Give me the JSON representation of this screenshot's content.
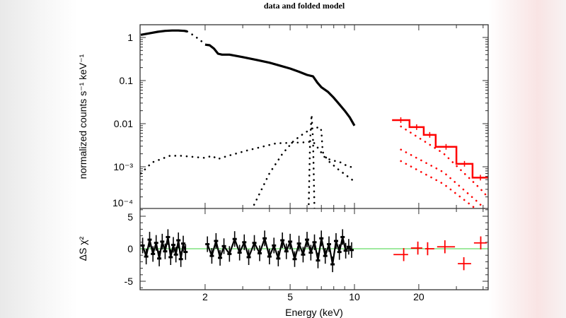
{
  "chart_data": {
    "type": "line",
    "title": "data and folded model",
    "xlabel": "Energy (keV)",
    "ylabel": "normalized counts s⁻¹ keV⁻¹",
    "residual_ylabel": "ΔS χ²",
    "x_scale": "log",
    "y_scale": "log",
    "xlim": [
      1.0,
      42
    ],
    "ylim": [
      0.0001,
      1.8
    ],
    "residual_ylim": [
      -6.3,
      6.2
    ],
    "grid": false,
    "x_ticks": [
      {
        "value": 2,
        "label": "2"
      },
      {
        "value": 5,
        "label": "5"
      },
      {
        "value": 10,
        "label": "10"
      },
      {
        "value": 20,
        "label": "20"
      }
    ],
    "y_ticks": [
      {
        "value": 1,
        "label": "1"
      },
      {
        "value": 0.1,
        "label": "0.1"
      },
      {
        "value": 0.01,
        "label": "0.01"
      },
      {
        "value": 0.001,
        "label": "10⁻³"
      },
      {
        "value": 0.0001,
        "label": "10⁻⁴"
      }
    ],
    "residual_ticks": [
      {
        "value": 5,
        "label": "5"
      },
      {
        "value": 0,
        "label": "0"
      },
      {
        "value": -5,
        "label": "-5"
      }
    ],
    "colors": {
      "xis": "#000000",
      "pin": "#ff0000",
      "zero_line": "#66dd66"
    },
    "series": [
      {
        "role": "xis-data",
        "segments": [
          [
            [
              1.0,
              1.15
            ],
            [
              1.1,
              1.25
            ],
            [
              1.2,
              1.35
            ],
            [
              1.3,
              1.42
            ],
            [
              1.4,
              1.45
            ],
            [
              1.5,
              1.45
            ],
            [
              1.6,
              1.42
            ],
            [
              1.65,
              1.38
            ]
          ],
          [
            [
              2.0,
              0.68
            ],
            [
              2.1,
              0.66
            ],
            [
              2.2,
              0.55
            ],
            [
              2.3,
              0.42
            ],
            [
              2.4,
              0.4
            ],
            [
              2.6,
              0.4
            ],
            [
              3.0,
              0.35
            ],
            [
              3.5,
              0.3
            ],
            [
              4.0,
              0.26
            ],
            [
              4.5,
              0.22
            ],
            [
              5.0,
              0.19
            ],
            [
              5.5,
              0.16
            ],
            [
              6.0,
              0.135
            ],
            [
              6.4,
              0.125
            ],
            [
              6.7,
              0.09
            ],
            [
              7.0,
              0.07
            ],
            [
              7.5,
              0.055
            ],
            [
              8.0,
              0.04
            ],
            [
              8.5,
              0.028
            ],
            [
              9.0,
              0.02
            ],
            [
              9.5,
              0.014
            ],
            [
              10.0,
              0.009
            ]
          ]
        ]
      },
      {
        "role": "xis-model-gap",
        "points": [
          [
            1.65,
            1.38
          ],
          [
            1.75,
            1.15
          ],
          [
            1.85,
            0.95
          ],
          [
            2.0,
            0.7
          ]
        ]
      },
      {
        "role": "xis-model-continuum",
        "points": [
          [
            1.0,
            0.0007
          ],
          [
            1.13,
            0.00126
          ],
          [
            1.37,
            0.0018
          ],
          [
            1.53,
            0.0018
          ],
          [
            2.0,
            0.0016
          ],
          [
            2.16,
            0.0018
          ],
          [
            2.28,
            0.0015
          ],
          [
            2.57,
            0.0018
          ],
          [
            3.16,
            0.0024
          ],
          [
            4.3,
            0.0035
          ],
          [
            6.0,
            0.0037
          ],
          [
            6.3,
            0.0039
          ],
          [
            6.5,
            0.0035
          ],
          [
            7.3,
            0.0016
          ],
          [
            7.9,
            0.0014
          ],
          [
            8.5,
            0.0013
          ],
          [
            9.3,
            0.00103
          ],
          [
            9.8,
            0.00097
          ]
        ]
      },
      {
        "role": "xis-model-broad-line",
        "points": [
          [
            3.3,
            0.0001
          ],
          [
            4.0,
            0.0007
          ],
          [
            4.6,
            0.002
          ],
          [
            5.2,
            0.004
          ],
          [
            5.7,
            0.0056
          ],
          [
            6.3,
            0.0077
          ],
          [
            6.9,
            0.0083
          ],
          [
            7.0,
            0.0069
          ],
          [
            7.1,
            0.0022
          ],
          [
            7.5,
            0.0014
          ],
          [
            8.4,
            0.00087
          ],
          [
            9.8,
            0.00049
          ]
        ]
      },
      {
        "role": "xis-model-narrow-line",
        "points": [
          [
            6.1,
            0.0001
          ],
          [
            6.2,
            0.004
          ],
          [
            6.3,
            0.016
          ],
          [
            6.4,
            0.004
          ],
          [
            6.5,
            0.0001
          ]
        ]
      },
      {
        "role": "pin-data",
        "bins": [
          {
            "lo": 15.0,
            "hi": 18.1,
            "value": 0.0121
          },
          {
            "lo": 18.1,
            "hi": 21.1,
            "value": 0.0083
          },
          {
            "lo": 21.1,
            "hi": 24.0,
            "value": 0.0055
          },
          {
            "lo": 24.0,
            "hi": 30.0,
            "value": 0.0029
          },
          {
            "lo": 30.0,
            "hi": 35.7,
            "value": 0.00117
          },
          {
            "lo": 35.7,
            "hi": 42.3,
            "value": 0.00056
          }
        ]
      },
      {
        "role": "pin-model-1",
        "points": [
          [
            16.5,
            0.0086
          ],
          [
            26.1,
            0.00205
          ],
          [
            38.8,
            0.00031
          ],
          [
            42,
            0.0002
          ]
        ]
      },
      {
        "role": "pin-model-2",
        "points": [
          [
            16.5,
            0.0025
          ],
          [
            26.1,
            0.00075
          ],
          [
            38.2,
            0.000145
          ],
          [
            41,
            0.0001
          ]
        ]
      },
      {
        "role": "pin-model-3",
        "points": [
          [
            16.5,
            0.00135
          ],
          [
            26.1,
            0.0004
          ],
          [
            36.6,
            0.00011
          ],
          [
            37,
            0.0001
          ]
        ]
      }
    ],
    "residuals": {
      "xis": [
        [
          1.02,
          0.5
        ],
        [
          1.06,
          -1.2
        ],
        [
          1.1,
          1.4
        ],
        [
          1.14,
          -0.8
        ],
        [
          1.18,
          0.9
        ],
        [
          1.22,
          -1.5
        ],
        [
          1.26,
          1.1
        ],
        [
          1.3,
          -0.4
        ],
        [
          1.34,
          1.8
        ],
        [
          1.38,
          -1.3
        ],
        [
          1.42,
          0.6
        ],
        [
          1.46,
          -0.9
        ],
        [
          1.5,
          1.3
        ],
        [
          1.54,
          -1.6
        ],
        [
          1.58,
          0.8
        ],
        [
          1.62,
          -0.5
        ],
        [
          2.05,
          0.7
        ],
        [
          2.15,
          -1.1
        ],
        [
          2.25,
          1.2
        ],
        [
          2.35,
          -1.4
        ],
        [
          2.45,
          0.4
        ],
        [
          2.6,
          -0.8
        ],
        [
          2.75,
          1.5
        ],
        [
          2.9,
          -0.6
        ],
        [
          3.05,
          1.0
        ],
        [
          3.2,
          -1.3
        ],
        [
          3.4,
          0.9
        ],
        [
          3.6,
          -0.7
        ],
        [
          3.8,
          1.6
        ],
        [
          4.0,
          -1.2
        ],
        [
          4.2,
          0.5
        ],
        [
          4.4,
          -1.5
        ],
        [
          4.6,
          1.3
        ],
        [
          4.8,
          -0.4
        ],
        [
          5.0,
          1.1
        ],
        [
          5.25,
          -1.6
        ],
        [
          5.5,
          0.8
        ],
        [
          5.75,
          -0.9
        ],
        [
          6.0,
          1.4
        ],
        [
          6.25,
          -0.6
        ],
        [
          6.5,
          1.0
        ],
        [
          6.75,
          -1.8
        ],
        [
          7.0,
          1.6
        ],
        [
          7.3,
          -1.1
        ],
        [
          7.6,
          0.7
        ],
        [
          7.9,
          -2.4
        ],
        [
          8.2,
          1.2
        ],
        [
          8.5,
          -0.5
        ],
        [
          8.8,
          1.8
        ],
        [
          9.1,
          -0.3
        ],
        [
          9.4,
          0.3
        ],
        [
          9.7,
          -0.2
        ]
      ],
      "pin": [
        {
          "e": 17.0,
          "lo": 15.0,
          "hi": 18.1,
          "value": -0.9
        },
        {
          "e": 19.8,
          "lo": 18.1,
          "hi": 21.1,
          "value": 0.1
        },
        {
          "e": 22.0,
          "lo": 21.1,
          "hi": 24.0,
          "value": 0.0
        },
        {
          "e": 26.5,
          "lo": 24.0,
          "hi": 30.0,
          "value": 0.3
        },
        {
          "e": 32.5,
          "lo": 30.0,
          "hi": 35.7,
          "value": -2.3
        },
        {
          "e": 39.0,
          "lo": 35.7,
          "hi": 42.3,
          "value": 0.9
        }
      ]
    }
  }
}
